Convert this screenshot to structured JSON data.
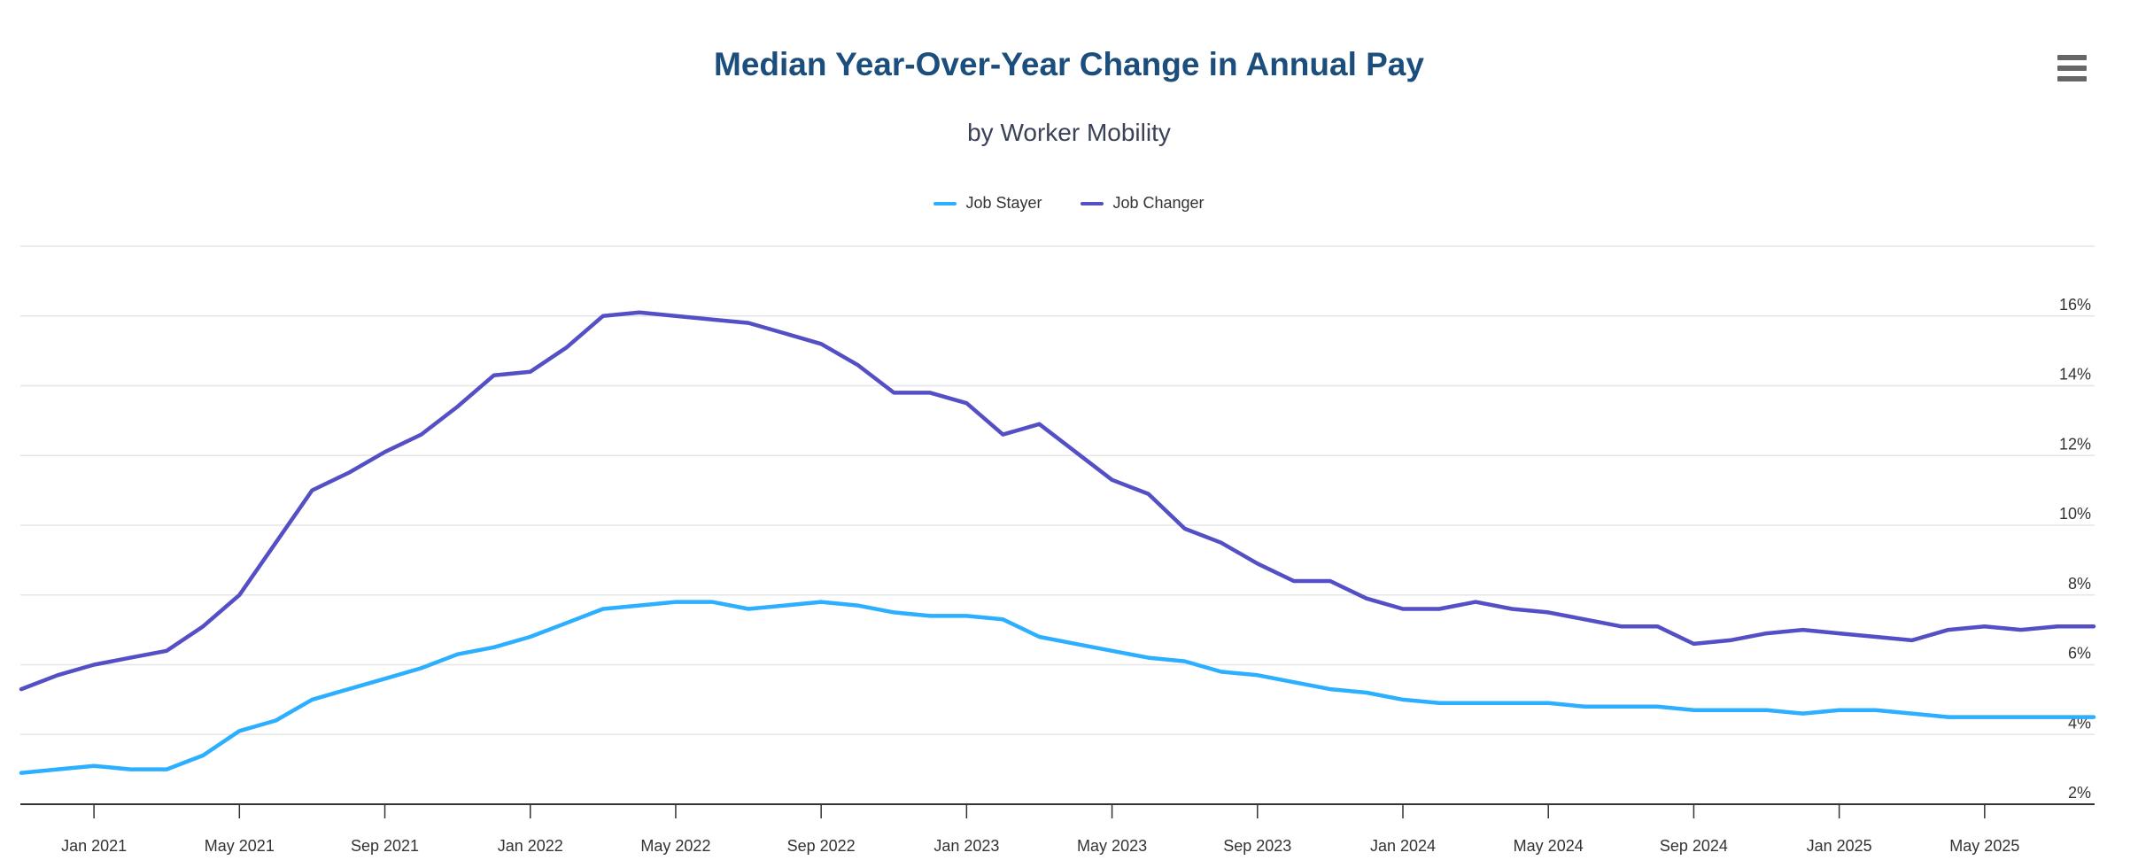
{
  "header": {
    "title": "Median Year-Over-Year Change in Annual Pay",
    "subtitle": "by Worker Mobility"
  },
  "icons": {
    "export_menu": "hamburger-icon"
  },
  "colors": {
    "title": "#1b4e7c",
    "subtitle": "#3b4256",
    "axis_labels": "#333333",
    "axis_line": "#333333",
    "gridline": "#e6e6e6",
    "job_stayer": "#2caffe",
    "job_changer": "#544fc5",
    "export_icon": "#666666"
  },
  "chart_data": {
    "type": "line",
    "title": "Median Year-Over-Year Change in Annual Pay",
    "subtitle": "by Worker Mobility",
    "legend_position": "top-center",
    "grid": true,
    "ylim": [
      2,
      18
    ],
    "y_tick_step": 2,
    "y_tick_labels": [
      "2%",
      "4%",
      "6%",
      "8%",
      "10%",
      "12%",
      "14%",
      "16%"
    ],
    "x_tick_labels": [
      "Jan 2021",
      "May 2021",
      "Sep 2021",
      "Jan 2022",
      "May 2022",
      "Sep 2022",
      "Jan 2023",
      "May 2023",
      "Sep 2023",
      "Jan 2024",
      "May 2024",
      "Sep 2024",
      "Jan 2025",
      "May 2025"
    ],
    "x_tick_indices": [
      2,
      6,
      10,
      14,
      18,
      22,
      26,
      30,
      34,
      38,
      42,
      46,
      50,
      54
    ],
    "categories": [
      "Nov 2020",
      "Dec 2020",
      "Jan 2021",
      "Feb 2021",
      "Mar 2021",
      "Apr 2021",
      "May 2021",
      "Jun 2021",
      "Jul 2021",
      "Aug 2021",
      "Sep 2021",
      "Oct 2021",
      "Nov 2021",
      "Dec 2021",
      "Jan 2022",
      "Feb 2022",
      "Mar 2022",
      "Apr 2022",
      "May 2022",
      "Jun 2022",
      "Jul 2022",
      "Aug 2022",
      "Sep 2022",
      "Oct 2022",
      "Nov 2022",
      "Dec 2022",
      "Jan 2023",
      "Feb 2023",
      "Mar 2023",
      "Apr 2023",
      "May 2023",
      "Jun 2023",
      "Jul 2023",
      "Aug 2023",
      "Sep 2023",
      "Oct 2023",
      "Nov 2023",
      "Dec 2023",
      "Jan 2024",
      "Feb 2024",
      "Mar 2024",
      "Apr 2024",
      "May 2024",
      "Jun 2024",
      "Jul 2024",
      "Aug 2024",
      "Sep 2024",
      "Oct 2024",
      "Nov 2024",
      "Dec 2024",
      "Jan 2025",
      "Feb 2025",
      "Mar 2025",
      "Apr 2025",
      "May 2025",
      "Jun 2025",
      "Jul 2025",
      "Aug 2025"
    ],
    "series": [
      {
        "name": "Job Stayer",
        "color": "#2caffe",
        "values": [
          2.9,
          3.0,
          3.1,
          3.0,
          3.0,
          3.4,
          4.1,
          4.4,
          5.0,
          5.3,
          5.6,
          5.9,
          6.3,
          6.5,
          6.8,
          7.2,
          7.6,
          7.7,
          7.8,
          7.8,
          7.6,
          7.7,
          7.8,
          7.7,
          7.5,
          7.4,
          7.4,
          7.3,
          6.8,
          6.6,
          6.4,
          6.2,
          6.1,
          5.8,
          5.7,
          5.5,
          5.3,
          5.2,
          5.0,
          4.9,
          4.9,
          4.9,
          4.9,
          4.8,
          4.8,
          4.8,
          4.7,
          4.7,
          4.7,
          4.6,
          4.7,
          4.7,
          4.6,
          4.5,
          4.5,
          4.5,
          4.5,
          4.5
        ]
      },
      {
        "name": "Job Changer",
        "color": "#544fc5",
        "values": [
          5.3,
          5.7,
          6.0,
          6.2,
          6.4,
          7.1,
          8.0,
          9.5,
          11.0,
          11.5,
          12.1,
          12.6,
          13.4,
          14.3,
          14.4,
          15.1,
          16.0,
          16.1,
          16.0,
          15.9,
          15.8,
          15.5,
          15.2,
          14.6,
          13.8,
          13.8,
          13.5,
          12.6,
          12.9,
          12.1,
          11.3,
          10.9,
          9.9,
          9.5,
          8.9,
          8.4,
          8.4,
          7.9,
          7.6,
          7.6,
          7.8,
          7.6,
          7.5,
          7.3,
          7.1,
          7.1,
          6.6,
          6.7,
          6.9,
          7.0,
          6.9,
          6.8,
          6.7,
          7.0,
          7.1,
          7.0,
          7.1,
          7.1
        ]
      }
    ]
  }
}
